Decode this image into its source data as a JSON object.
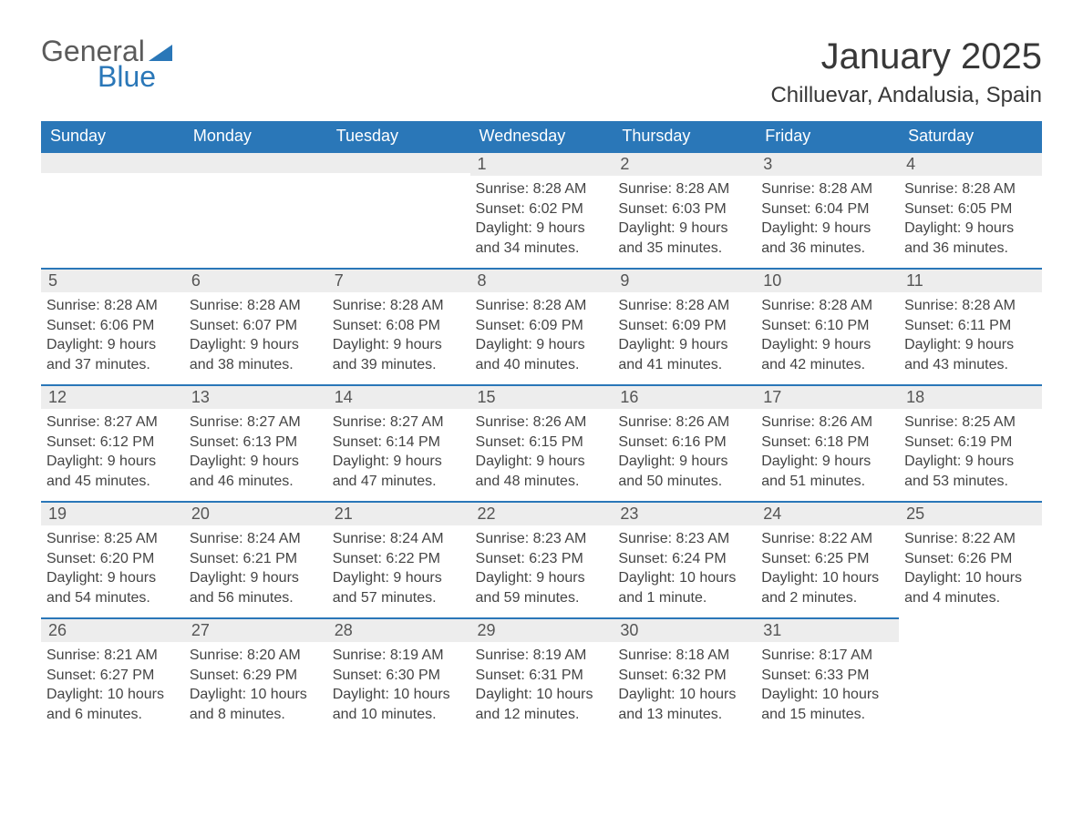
{
  "logo": {
    "general": "General",
    "blue": "Blue",
    "tri_color": "#2a77b8"
  },
  "header": {
    "month_title": "January 2025",
    "location": "Chilluevar, Andalusia, Spain"
  },
  "colors": {
    "header_bg": "#2a77b8",
    "header_text": "#ffffff",
    "daynum_bg": "#ededed",
    "row_border": "#2a77b8",
    "body_text": "#444444",
    "title_text": "#383838"
  },
  "weekdays": [
    "Sunday",
    "Monday",
    "Tuesday",
    "Wednesday",
    "Thursday",
    "Friday",
    "Saturday"
  ],
  "weeks": [
    [
      null,
      null,
      null,
      {
        "n": "1",
        "sr": "Sunrise: 8:28 AM",
        "ss": "Sunset: 6:02 PM",
        "dl": "Daylight: 9 hours and 34 minutes."
      },
      {
        "n": "2",
        "sr": "Sunrise: 8:28 AM",
        "ss": "Sunset: 6:03 PM",
        "dl": "Daylight: 9 hours and 35 minutes."
      },
      {
        "n": "3",
        "sr": "Sunrise: 8:28 AM",
        "ss": "Sunset: 6:04 PM",
        "dl": "Daylight: 9 hours and 36 minutes."
      },
      {
        "n": "4",
        "sr": "Sunrise: 8:28 AM",
        "ss": "Sunset: 6:05 PM",
        "dl": "Daylight: 9 hours and 36 minutes."
      }
    ],
    [
      {
        "n": "5",
        "sr": "Sunrise: 8:28 AM",
        "ss": "Sunset: 6:06 PM",
        "dl": "Daylight: 9 hours and 37 minutes."
      },
      {
        "n": "6",
        "sr": "Sunrise: 8:28 AM",
        "ss": "Sunset: 6:07 PM",
        "dl": "Daylight: 9 hours and 38 minutes."
      },
      {
        "n": "7",
        "sr": "Sunrise: 8:28 AM",
        "ss": "Sunset: 6:08 PM",
        "dl": "Daylight: 9 hours and 39 minutes."
      },
      {
        "n": "8",
        "sr": "Sunrise: 8:28 AM",
        "ss": "Sunset: 6:09 PM",
        "dl": "Daylight: 9 hours and 40 minutes."
      },
      {
        "n": "9",
        "sr": "Sunrise: 8:28 AM",
        "ss": "Sunset: 6:09 PM",
        "dl": "Daylight: 9 hours and 41 minutes."
      },
      {
        "n": "10",
        "sr": "Sunrise: 8:28 AM",
        "ss": "Sunset: 6:10 PM",
        "dl": "Daylight: 9 hours and 42 minutes."
      },
      {
        "n": "11",
        "sr": "Sunrise: 8:28 AM",
        "ss": "Sunset: 6:11 PM",
        "dl": "Daylight: 9 hours and 43 minutes."
      }
    ],
    [
      {
        "n": "12",
        "sr": "Sunrise: 8:27 AM",
        "ss": "Sunset: 6:12 PM",
        "dl": "Daylight: 9 hours and 45 minutes."
      },
      {
        "n": "13",
        "sr": "Sunrise: 8:27 AM",
        "ss": "Sunset: 6:13 PM",
        "dl": "Daylight: 9 hours and 46 minutes."
      },
      {
        "n": "14",
        "sr": "Sunrise: 8:27 AM",
        "ss": "Sunset: 6:14 PM",
        "dl": "Daylight: 9 hours and 47 minutes."
      },
      {
        "n": "15",
        "sr": "Sunrise: 8:26 AM",
        "ss": "Sunset: 6:15 PM",
        "dl": "Daylight: 9 hours and 48 minutes."
      },
      {
        "n": "16",
        "sr": "Sunrise: 8:26 AM",
        "ss": "Sunset: 6:16 PM",
        "dl": "Daylight: 9 hours and 50 minutes."
      },
      {
        "n": "17",
        "sr": "Sunrise: 8:26 AM",
        "ss": "Sunset: 6:18 PM",
        "dl": "Daylight: 9 hours and 51 minutes."
      },
      {
        "n": "18",
        "sr": "Sunrise: 8:25 AM",
        "ss": "Sunset: 6:19 PM",
        "dl": "Daylight: 9 hours and 53 minutes."
      }
    ],
    [
      {
        "n": "19",
        "sr": "Sunrise: 8:25 AM",
        "ss": "Sunset: 6:20 PM",
        "dl": "Daylight: 9 hours and 54 minutes."
      },
      {
        "n": "20",
        "sr": "Sunrise: 8:24 AM",
        "ss": "Sunset: 6:21 PM",
        "dl": "Daylight: 9 hours and 56 minutes."
      },
      {
        "n": "21",
        "sr": "Sunrise: 8:24 AM",
        "ss": "Sunset: 6:22 PM",
        "dl": "Daylight: 9 hours and 57 minutes."
      },
      {
        "n": "22",
        "sr": "Sunrise: 8:23 AM",
        "ss": "Sunset: 6:23 PM",
        "dl": "Daylight: 9 hours and 59 minutes."
      },
      {
        "n": "23",
        "sr": "Sunrise: 8:23 AM",
        "ss": "Sunset: 6:24 PM",
        "dl": "Daylight: 10 hours and 1 minute."
      },
      {
        "n": "24",
        "sr": "Sunrise: 8:22 AM",
        "ss": "Sunset: 6:25 PM",
        "dl": "Daylight: 10 hours and 2 minutes."
      },
      {
        "n": "25",
        "sr": "Sunrise: 8:22 AM",
        "ss": "Sunset: 6:26 PM",
        "dl": "Daylight: 10 hours and 4 minutes."
      }
    ],
    [
      {
        "n": "26",
        "sr": "Sunrise: 8:21 AM",
        "ss": "Sunset: 6:27 PM",
        "dl": "Daylight: 10 hours and 6 minutes."
      },
      {
        "n": "27",
        "sr": "Sunrise: 8:20 AM",
        "ss": "Sunset: 6:29 PM",
        "dl": "Daylight: 10 hours and 8 minutes."
      },
      {
        "n": "28",
        "sr": "Sunrise: 8:19 AM",
        "ss": "Sunset: 6:30 PM",
        "dl": "Daylight: 10 hours and 10 minutes."
      },
      {
        "n": "29",
        "sr": "Sunrise: 8:19 AM",
        "ss": "Sunset: 6:31 PM",
        "dl": "Daylight: 10 hours and 12 minutes."
      },
      {
        "n": "30",
        "sr": "Sunrise: 8:18 AM",
        "ss": "Sunset: 6:32 PM",
        "dl": "Daylight: 10 hours and 13 minutes."
      },
      {
        "n": "31",
        "sr": "Sunrise: 8:17 AM",
        "ss": "Sunset: 6:33 PM",
        "dl": "Daylight: 10 hours and 15 minutes."
      },
      null
    ]
  ]
}
